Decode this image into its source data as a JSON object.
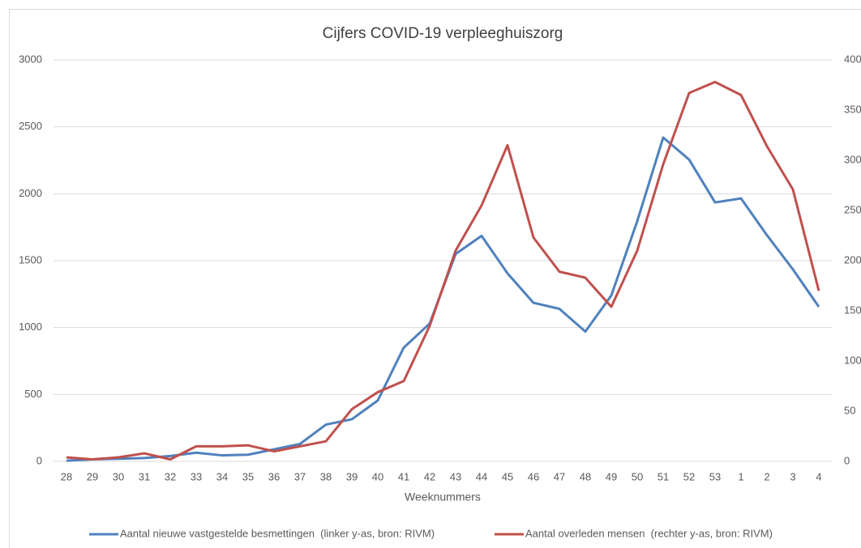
{
  "chart_data": {
    "type": "line",
    "title": "Cijfers COVID-19 verpleeghuiszorg",
    "x_label": "Weeknummers",
    "categories": [
      "28",
      "29",
      "30",
      "31",
      "32",
      "33",
      "34",
      "35",
      "36",
      "37",
      "38",
      "39",
      "40",
      "41",
      "42",
      "43",
      "44",
      "45",
      "46",
      "47",
      "48",
      "49",
      "50",
      "51",
      "52",
      "53",
      "1",
      "2",
      "3",
      "4"
    ],
    "series": [
      {
        "name": "Aantal nieuwe vastgestelde besmettingen  (linker y-as, bron: RIVM)",
        "color": "#4f81bd",
        "axis": "y",
        "values": [
          5,
          15,
          20,
          25,
          40,
          65,
          45,
          50,
          90,
          130,
          275,
          315,
          455,
          850,
          1030,
          1550,
          1685,
          1405,
          1185,
          1140,
          970,
          1240,
          1795,
          2420,
          2255,
          1935,
          1965,
          1690,
          1435,
          1155
        ]
      },
      {
        "name": "Aantal overleden mensen  (rechter y-as, bron: RIVM)",
        "color": "#c0504d",
        "axis": "y2",
        "values": [
          4,
          2,
          4,
          8,
          2,
          15,
          15,
          16,
          10,
          15,
          20,
          52,
          69,
          80,
          135,
          210,
          255,
          315,
          223,
          189,
          183,
          154,
          210,
          296,
          367,
          378,
          365,
          314,
          271,
          170
        ]
      }
    ],
    "ylim": [
      0,
      3000
    ],
    "yticks": [
      0,
      500,
      1000,
      1500,
      2000,
      2500,
      3000
    ],
    "y2lim": [
      0,
      400
    ],
    "y2ticks": [
      0,
      50,
      100,
      150,
      200,
      250,
      300,
      350,
      400
    ],
    "grid": true,
    "legend": "bottom"
  }
}
